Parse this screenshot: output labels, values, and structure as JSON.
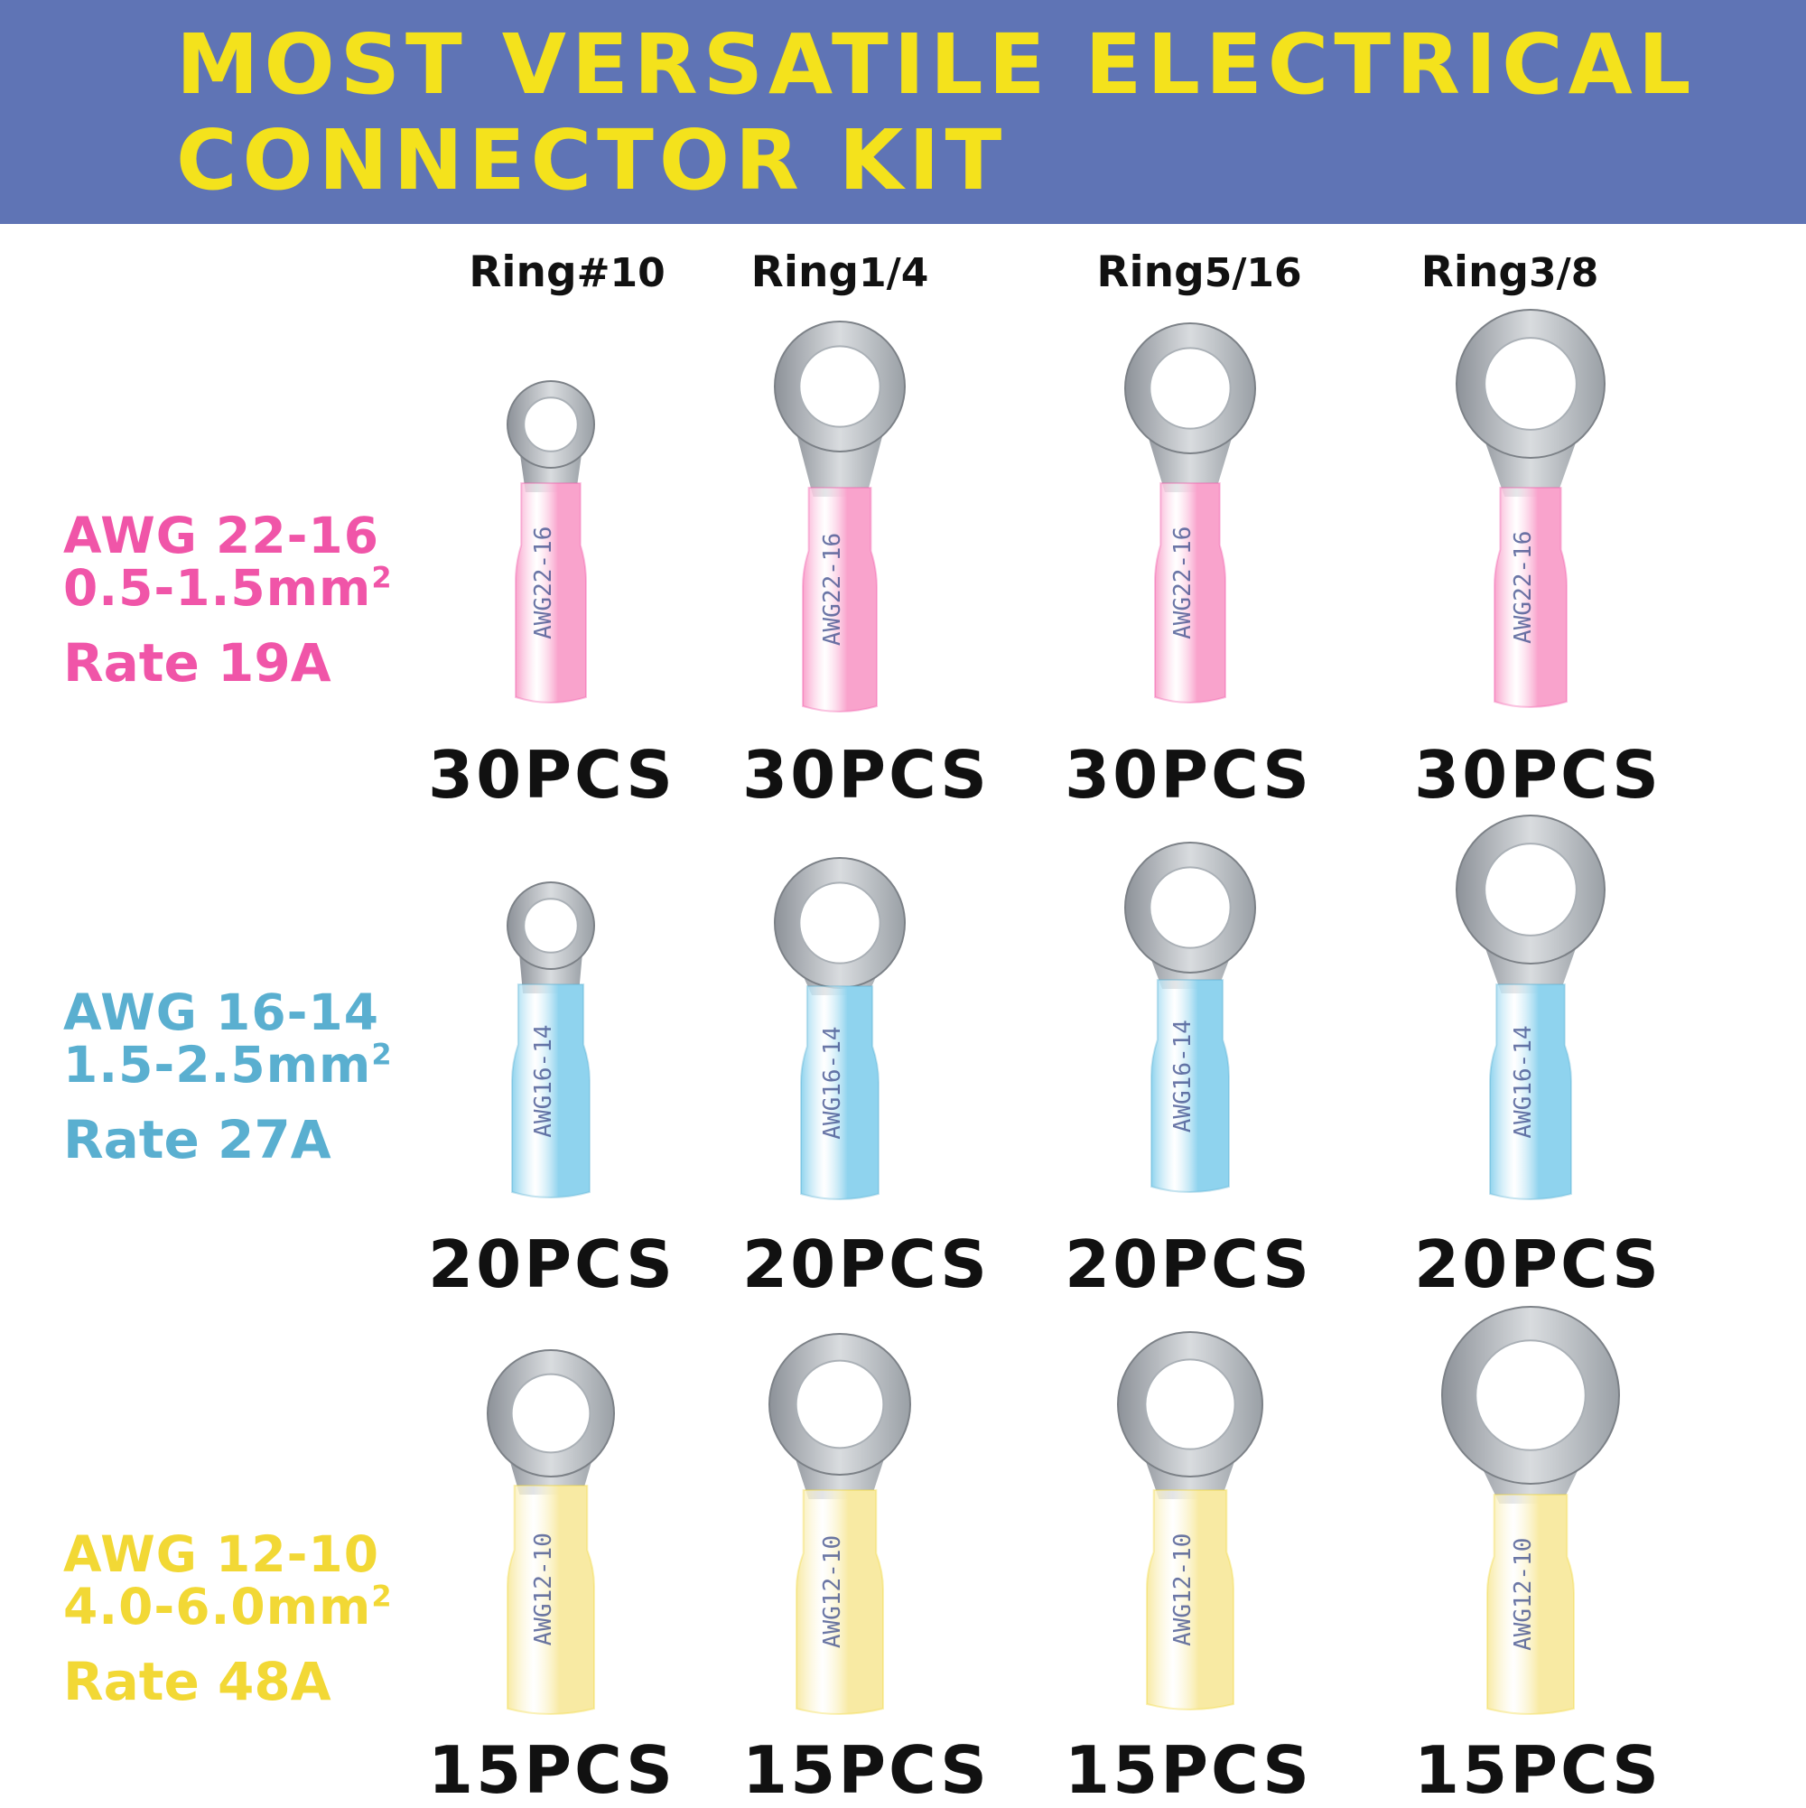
{
  "banner": {
    "title_line1": "MOST VERSATILE ELECTRICAL",
    "title_line2": "CONNECTOR KIT",
    "background": "#5f74b5",
    "text_color": "#f4e21c"
  },
  "columns": [
    {
      "label": "Ring",
      "size": "#10"
    },
    {
      "label": "Ring",
      "size": "1/4"
    },
    {
      "label": "Ring",
      "size": "5/16"
    },
    {
      "label": "Ring",
      "size": "3/8"
    }
  ],
  "rows": [
    {
      "awg": "AWG 22-16",
      "mm": "0.5-1.5mm",
      "mm_sup": "2",
      "rate": "Rate  19A",
      "color": "#f055a8",
      "sleeve_color": "#f9a3cc",
      "sleeve_text": "AWG22-16",
      "quantities": [
        "30PCS",
        "30PCS",
        "30PCS",
        "30PCS"
      ]
    },
    {
      "awg": "AWG 16-14",
      "mm": "1.5-2.5mm",
      "mm_sup": "2",
      "rate": "Rate  27A",
      "color": "#5aafd0",
      "sleeve_color": "#8fd3ee",
      "sleeve_text": "AWG16-14",
      "quantities": [
        "20PCS",
        "20PCS",
        "20PCS",
        "20PCS"
      ]
    },
    {
      "awg": "AWG 12-10",
      "mm": "4.0-6.0mm",
      "mm_sup": "2",
      "rate": "Rate  48A",
      "color": "#f2d835",
      "sleeve_color": "#f8eaa3",
      "sleeve_text": "AWG12-10",
      "quantities": [
        "15PCS",
        "15PCS",
        "15PCS",
        "15PCS"
      ]
    }
  ],
  "icons": {
    "terminal": "ring-terminal-icon"
  }
}
